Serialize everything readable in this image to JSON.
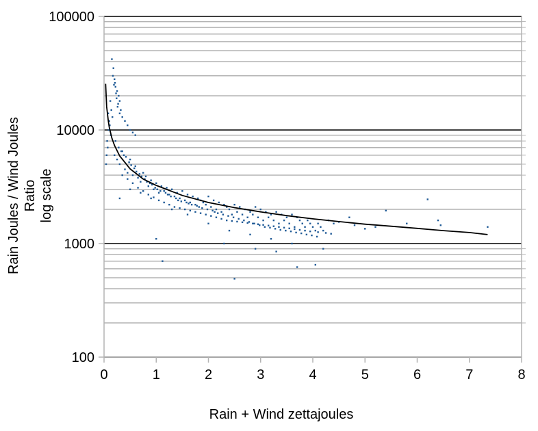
{
  "chart_data": {
    "type": "scatter",
    "xlabel": "Rain + Wind zettajoules",
    "ylabel_lines": [
      "Rain Joules / Wind Joules",
      "Ratio",
      "log scale"
    ],
    "xlim": [
      0,
      8
    ],
    "ylim": [
      100,
      100000
    ],
    "yscale": "log",
    "x_ticks": [
      "0",
      "1",
      "2",
      "3",
      "4",
      "5",
      "6",
      "7",
      "8"
    ],
    "y_ticks": [
      "100",
      "1000",
      "10000",
      "100000"
    ],
    "grid": true,
    "point_color": "#1f5a96",
    "trend": {
      "type": "power",
      "color": "#000000",
      "x": [
        0.03,
        0.05,
        0.08,
        0.1,
        0.15,
        0.2,
        0.3,
        0.5,
        0.75,
        1.0,
        1.5,
        2.0,
        2.5,
        3.0,
        3.5,
        4.0,
        4.5,
        5.0,
        5.5,
        6.0,
        6.5,
        7.0,
        7.35
      ],
      "y": [
        25500,
        16100,
        12200,
        10600,
        8500,
        7300,
        5900,
        4550,
        3700,
        3250,
        2650,
        2300,
        2070,
        1900,
        1760,
        1650,
        1560,
        1480,
        1420,
        1360,
        1300,
        1250,
        1200
      ]
    },
    "points": {
      "x": [
        0.15,
        0.18,
        0.2,
        0.22,
        0.25,
        0.28,
        0.3,
        0.17,
        0.21,
        0.24,
        0.27,
        0.32,
        0.35,
        0.19,
        0.23,
        0.26,
        0.3,
        0.4,
        0.45,
        0.5,
        0.55,
        0.6,
        0.12,
        0.14,
        0.16,
        0.1,
        0.08,
        0.11,
        0.13,
        0.09,
        0.06,
        0.07,
        0.05,
        0.04,
        0.2,
        0.25,
        0.3,
        0.35,
        0.4,
        0.45,
        0.5,
        0.55,
        0.6,
        0.65,
        0.7,
        0.75,
        0.8,
        0.85,
        0.9,
        0.95,
        1.0,
        1.05,
        1.1,
        1.15,
        1.2,
        1.25,
        1.3,
        1.35,
        1.4,
        1.45,
        1.5,
        1.55,
        1.6,
        1.65,
        1.7,
        1.75,
        1.8,
        1.85,
        1.9,
        1.95,
        2.0,
        2.05,
        2.1,
        2.15,
        2.2,
        2.25,
        2.3,
        2.35,
        2.4,
        2.45,
        2.5,
        2.55,
        2.6,
        2.65,
        2.7,
        2.75,
        2.8,
        2.85,
        2.9,
        2.95,
        3.0,
        3.05,
        3.1,
        3.15,
        3.2,
        3.25,
        3.3,
        3.35,
        3.4,
        3.45,
        3.5,
        3.55,
        3.6,
        3.65,
        3.7,
        3.75,
        3.8,
        3.85,
        3.9,
        3.95,
        4.0,
        4.05,
        4.1,
        4.15,
        4.2,
        4.3,
        4.4,
        4.5,
        4.7,
        4.8,
        5.0,
        5.2,
        5.4,
        5.8,
        6.2,
        6.4,
        6.45,
        7.35,
        1.12,
        2.5,
        3.7,
        4.05,
        1.0,
        2.3,
        2.9,
        3.3,
        0.3,
        0.5,
        0.7,
        0.9,
        1.3,
        1.6,
        2.0,
        2.4,
        2.8,
        3.2,
        3.6,
        4.2,
        0.22,
        0.28,
        0.33,
        0.38,
        0.42,
        0.48,
        0.52,
        0.58,
        0.62,
        0.68,
        0.72,
        0.78,
        0.82,
        0.88,
        0.92,
        0.98,
        1.02,
        1.08,
        1.18,
        1.22,
        1.28,
        1.38,
        1.42,
        1.48,
        1.58,
        1.62,
        1.68,
        1.78,
        1.82,
        1.88,
        1.98,
        2.08,
        2.12,
        2.18,
        2.28,
        2.38,
        2.48,
        2.58,
        2.68,
        2.78,
        2.88,
        2.98,
        3.08,
        3.18,
        3.28,
        3.38,
        3.48,
        3.58,
        3.68,
        3.78,
        3.88,
        3.98,
        4.08,
        0.35,
        0.45,
        0.55,
        0.65,
        0.75,
        0.85,
        0.95,
        1.05,
        1.15,
        1.25,
        1.35,
        1.45,
        1.55,
        1.65,
        1.75,
        1.85,
        1.95,
        2.05,
        2.15,
        2.25,
        2.35,
        2.45,
        2.55,
        2.65,
        2.75,
        2.85,
        2.95,
        3.05,
        3.15,
        3.25,
        3.35,
        3.45,
        3.55,
        3.65,
        3.75,
        3.85,
        3.95,
        4.1,
        4.25,
        4.35
      ],
      "y": [
        42000,
        35000,
        28000,
        24000,
        22000,
        20000,
        18000,
        30000,
        26000,
        19000,
        17000,
        15000,
        13000,
        25000,
        21000,
        16000,
        14000,
        12000,
        11000,
        10000,
        9500,
        9000,
        18000,
        15000,
        13000,
        12000,
        14000,
        11000,
        9000,
        10000,
        8000,
        7000,
        6000,
        5000,
        6000,
        5500,
        5000,
        6500,
        4500,
        4200,
        5500,
        4000,
        4800,
        3800,
        3500,
        4200,
        3900,
        3200,
        3600,
        3000,
        3400,
        2800,
        3200,
        2900,
        3100,
        2700,
        3000,
        2600,
        2800,
        2500,
        2900,
        2400,
        2700,
        2300,
        2600,
        2200,
        2500,
        2400,
        2300,
        2200,
        2600,
        2100,
        2400,
        2000,
        2300,
        1900,
        2200,
        2100,
        2000,
        1800,
        2200,
        1900,
        2100,
        1800,
        2000,
        1700,
        1900,
        1800,
        2100,
        1700,
        2000,
        1600,
        1900,
        1700,
        1800,
        1600,
        1900,
        1500,
        1800,
        1600,
        1700,
        1500,
        1800,
        1400,
        1700,
        1600,
        1500,
        1400,
        1600,
        1500,
        1400,
        1300,
        1500,
        1400,
        1300,
        1600,
        1500,
        1550,
        1700,
        1450,
        1350,
        1400,
        1950,
        1500,
        2450,
        1600,
        1450,
        1400,
        700,
        490,
        620,
        650,
        1100,
        1000,
        900,
        850,
        2500,
        3000,
        2800,
        2500,
        2000,
        1800,
        1500,
        1300,
        1200,
        1100,
        1000,
        900,
        8000,
        7000,
        6500,
        6000,
        5800,
        5200,
        4900,
        4600,
        4300,
        4100,
        3900,
        3700,
        3500,
        3400,
        3300,
        3100,
        3000,
        2900,
        2800,
        2700,
        2600,
        2500,
        2400,
        2350,
        2300,
        2250,
        2200,
        2150,
        2100,
        2050,
        2000,
        1950,
        1900,
        1850,
        1800,
        1750,
        1700,
        1650,
        1600,
        1550,
        1500,
        1450,
        1400,
        1380,
        1350,
        1320,
        1300,
        1280,
        1250,
        1230,
        1200,
        1180,
        1150,
        4000,
        3700,
        3400,
        3100,
        2900,
        2700,
        2550,
        2400,
        2300,
        2200,
        2100,
        2050,
        2000,
        1950,
        1900,
        1850,
        1800,
        1750,
        1700,
        1650,
        1600,
        1580,
        1560,
        1540,
        1520,
        1500,
        1480,
        1460,
        1440,
        1420,
        1400,
        1380,
        1360,
        1340,
        1320,
        1300,
        1280,
        1260,
        1240,
        1220
      ]
    }
  }
}
